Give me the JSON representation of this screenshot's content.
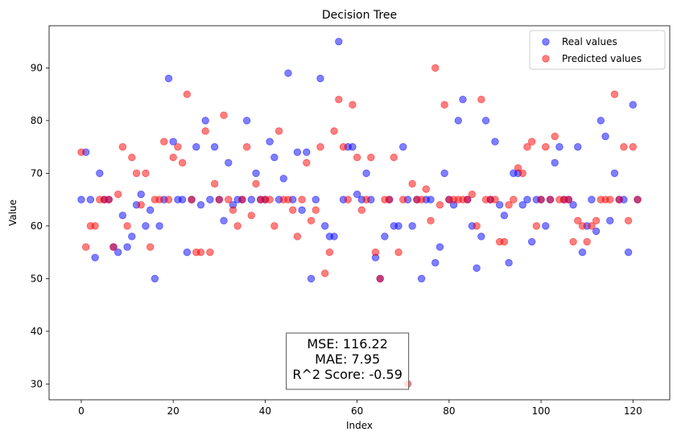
{
  "chart_data": {
    "type": "scatter",
    "title": "Decision Tree",
    "xlabel": "Index",
    "ylabel": "Value",
    "xlim": [
      -7,
      128
    ],
    "ylim": [
      27,
      98
    ],
    "xticks": [
      0,
      20,
      40,
      60,
      80,
      100,
      120
    ],
    "yticks": [
      30,
      40,
      50,
      60,
      70,
      80,
      90
    ],
    "grid": false,
    "legend_position": "top-right",
    "series": [
      {
        "name": "Real values",
        "color": "#0000ff",
        "alpha": 0.5,
        "x": [
          0,
          1,
          2,
          3,
          4,
          5,
          6,
          7,
          8,
          9,
          10,
          11,
          12,
          13,
          14,
          15,
          16,
          17,
          18,
          19,
          20,
          21,
          22,
          23,
          24,
          25,
          26,
          27,
          28,
          29,
          30,
          31,
          32,
          33,
          34,
          35,
          36,
          37,
          38,
          39,
          40,
          41,
          42,
          43,
          44,
          45,
          46,
          47,
          48,
          49,
          50,
          51,
          52,
          53,
          54,
          55,
          56,
          57,
          58,
          59,
          60,
          61,
          62,
          63,
          64,
          65,
          66,
          67,
          68,
          69,
          70,
          71,
          72,
          73,
          74,
          75,
          76,
          77,
          78,
          79,
          80,
          81,
          82,
          83,
          84,
          85,
          86,
          87,
          88,
          89,
          90,
          91,
          92,
          93,
          94,
          95,
          96,
          97,
          98,
          99,
          100,
          101,
          102,
          103,
          104,
          105,
          106,
          107,
          108,
          109,
          110,
          111,
          112,
          113,
          114,
          115,
          116,
          117,
          118,
          119,
          120,
          121
        ],
        "y": [
          65,
          74,
          65,
          54,
          70,
          65,
          65,
          56,
          55,
          62,
          56,
          58,
          64,
          66,
          60,
          63,
          50,
          60,
          65,
          88,
          76,
          65,
          65,
          55,
          65,
          75,
          64,
          80,
          65,
          75,
          65,
          61,
          72,
          64,
          65,
          65,
          80,
          65,
          70,
          65,
          65,
          76,
          73,
          65,
          69,
          89,
          65,
          74,
          63,
          74,
          50,
          65,
          88,
          60,
          58,
          58,
          95,
          65,
          75,
          75,
          66,
          65,
          70,
          65,
          54,
          50,
          58,
          65,
          60,
          60,
          75,
          65,
          60,
          65,
          50,
          65,
          65,
          53,
          56,
          70,
          65,
          64,
          80,
          84,
          65,
          60,
          52,
          58,
          80,
          65,
          76,
          64,
          62,
          53,
          70,
          70,
          64,
          65,
          57,
          65,
          65,
          60,
          65,
          72,
          75,
          65,
          65,
          64,
          75,
          55,
          60,
          65,
          59,
          80,
          77,
          61,
          70,
          65,
          65,
          55,
          83,
          65
        ]
      },
      {
        "name": "Predicted values",
        "color": "#ff0000",
        "alpha": 0.5,
        "x": [
          0,
          1,
          2,
          3,
          4,
          5,
          6,
          7,
          8,
          9,
          10,
          11,
          12,
          13,
          14,
          15,
          16,
          17,
          18,
          19,
          20,
          21,
          22,
          23,
          24,
          25,
          26,
          27,
          28,
          29,
          30,
          31,
          32,
          33,
          34,
          35,
          36,
          37,
          38,
          39,
          40,
          41,
          42,
          43,
          44,
          45,
          46,
          47,
          48,
          49,
          50,
          51,
          52,
          53,
          54,
          55,
          56,
          57,
          58,
          59,
          60,
          61,
          62,
          63,
          64,
          65,
          66,
          67,
          68,
          69,
          70,
          71,
          72,
          73,
          74,
          75,
          76,
          77,
          78,
          79,
          80,
          81,
          82,
          83,
          84,
          85,
          86,
          87,
          88,
          89,
          90,
          91,
          92,
          93,
          94,
          95,
          96,
          97,
          98,
          99,
          100,
          101,
          102,
          103,
          104,
          105,
          106,
          107,
          108,
          109,
          110,
          111,
          112,
          113,
          114,
          115,
          116,
          117,
          118,
          119,
          120,
          121
        ],
        "y": [
          74,
          56,
          60,
          60,
          65,
          65,
          65,
          56,
          66,
          75,
          60,
          73,
          70,
          64,
          70,
          56,
          65,
          65,
          76,
          65,
          73,
          75,
          72,
          85,
          65,
          55,
          55,
          78,
          55,
          68,
          65,
          81,
          65,
          63,
          60,
          65,
          75,
          62,
          68,
          65,
          65,
          65,
          60,
          78,
          65,
          65,
          63,
          58,
          65,
          72,
          61,
          63,
          75,
          51,
          55,
          78,
          84,
          75,
          65,
          83,
          73,
          63,
          65,
          73,
          55,
          50,
          65,
          65,
          73,
          55,
          65,
          30,
          68,
          65,
          65,
          67,
          61,
          90,
          64,
          83,
          65,
          65,
          65,
          65,
          65,
          66,
          60,
          84,
          65,
          65,
          65,
          57,
          57,
          64,
          65,
          71,
          70,
          75,
          76,
          60,
          65,
          75,
          65,
          77,
          65,
          65,
          65,
          57,
          61,
          60,
          57,
          60,
          61,
          65,
          65,
          65,
          85,
          65,
          75,
          61,
          75,
          65
        ]
      }
    ],
    "annotation": {
      "lines": [
        "MSE: 116.22",
        "MAE: 7.95",
        "R^2 Score: -0.59"
      ],
      "position": "bottom-center"
    }
  }
}
